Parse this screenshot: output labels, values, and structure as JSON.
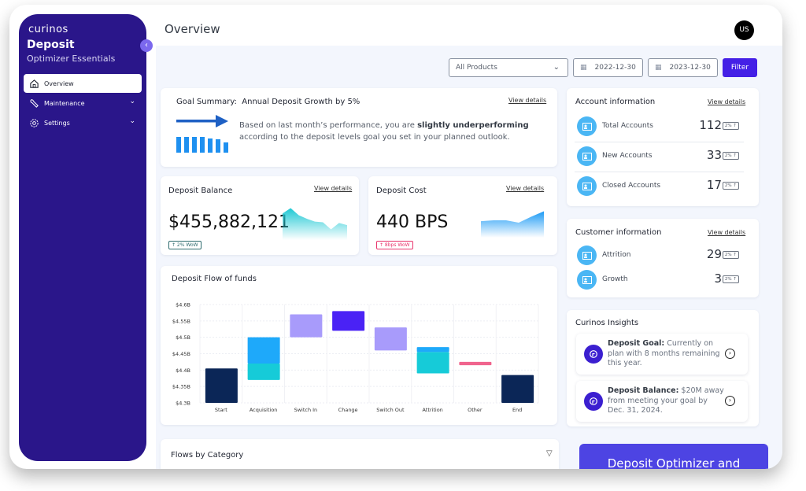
{
  "sidebar": {
    "logo": "curinos",
    "app_name": "Deposit",
    "app_subtitle": "Optimizer Essentials",
    "collapse_icon": "chevron-left-icon",
    "items": [
      {
        "label": "Overview",
        "icon": "home-icon",
        "active": true
      },
      {
        "label": "Maintenance",
        "icon": "wrench-icon",
        "expandable": true
      },
      {
        "label": "Settings",
        "icon": "gear-icon",
        "expandable": true
      }
    ]
  },
  "header": {
    "title": "Overview",
    "avatar_initials": "US"
  },
  "filters": {
    "product_select": "All Products",
    "start_date": "2022-12-30",
    "end_date": "2023-12-30",
    "filter_label": "Filter"
  },
  "goal_summary": {
    "label": "Goal Summary:",
    "goal": "Annual Deposit Growth by 5%",
    "view_details": "View details",
    "text_before": "Based on last month’s performance, you are ",
    "text_bold": "slightly underperforming",
    "text_after": " according to the deposit levels goal you set in your planned outlook."
  },
  "deposit_balance": {
    "title": "Deposit Balance",
    "view_details": "View details",
    "value": "$455,882,121",
    "badge": "↑ 2% WoW",
    "badge_color": "#2e6b6e",
    "sparkline": [
      0.75,
      0.9,
      0.7,
      0.6,
      0.52,
      0.5,
      0.3,
      0.48,
      0.42
    ],
    "sparkline_color": "#1ec8d4"
  },
  "deposit_cost": {
    "title": "Deposit Cost",
    "view_details": "View details",
    "value": "440 BPS",
    "badge": "↑ 8bps WoW",
    "badge_color": "#e8336b",
    "sparkline": [
      0.55,
      0.58,
      0.58,
      0.5,
      0.7,
      0.88
    ],
    "sparkline_color": "#1e9bf5"
  },
  "account_info": {
    "title": "Account information",
    "view_details": "View details",
    "rows": [
      {
        "label": "Total Accounts",
        "value": "112",
        "badge": "2% ↑"
      },
      {
        "label": "New Accounts",
        "value": "33",
        "badge": "2% ↑"
      },
      {
        "label": "Closed Accounts",
        "value": "17",
        "badge": "2% ↑"
      }
    ]
  },
  "customer_info": {
    "title": "Customer information",
    "view_details": "View details",
    "rows": [
      {
        "label": "Attrition",
        "value": "29",
        "badge": "2% ↑"
      },
      {
        "label": "Growth",
        "value": "3",
        "badge": "2% ↑"
      }
    ]
  },
  "insights": {
    "title": "Curinos Insights",
    "items": [
      {
        "bold": "Deposit Goal:",
        "text": " Currently on plan with 8 months remaining this year."
      },
      {
        "bold": "Deposit Balance:",
        "text": " $20M away from meeting your goal by Dec. 31, 2024."
      }
    ]
  },
  "flows_by_category": {
    "title": "Flows by Category"
  },
  "promo": {
    "label": "Deposit Optimizer and"
  },
  "chart_data": {
    "type": "waterfall",
    "title": "Deposit Flow of funds",
    "xlabel": "",
    "ylabel": "",
    "ylim": [
      4.3,
      4.6
    ],
    "yticks": [
      "$4.3B",
      "$4.35B",
      "$4.4B",
      "$4.45B",
      "$4.5B",
      "$4.55B",
      "$4.6B"
    ],
    "ytick_values": [
      4.3,
      4.35,
      4.4,
      4.45,
      4.5,
      4.55,
      4.6
    ],
    "grid": true,
    "categories": [
      "Start",
      "Acquisition",
      "Switch In",
      "Change",
      "Switch Out",
      "Attrition",
      "Other",
      "End"
    ],
    "bars": [
      {
        "category": "Start",
        "segments": [
          {
            "from": 4.3,
            "to": 4.405,
            "color": "#0b2657"
          }
        ]
      },
      {
        "category": "Acquisition",
        "segments": [
          {
            "from": 4.37,
            "to": 4.42,
            "color": "#16cbd8"
          },
          {
            "from": 4.42,
            "to": 4.5,
            "color": "#1ea9fa"
          }
        ]
      },
      {
        "category": "Switch In",
        "segments": [
          {
            "from": 4.5,
            "to": 4.57,
            "color": "#a89bfb"
          }
        ]
      },
      {
        "category": "Change",
        "segments": [
          {
            "from": 4.52,
            "to": 4.58,
            "color": "#4a22f5"
          }
        ]
      },
      {
        "category": "Switch Out",
        "segments": [
          {
            "from": 4.46,
            "to": 4.53,
            "color": "#a89bfb"
          }
        ]
      },
      {
        "category": "Attrition",
        "segments": [
          {
            "from": 4.39,
            "to": 4.455,
            "color": "#16cbd8"
          },
          {
            "from": 4.455,
            "to": 4.47,
            "color": "#1ea9fa"
          }
        ]
      },
      {
        "category": "Other",
        "segments": [
          {
            "from": 4.415,
            "to": 4.425,
            "color": "#f0648d"
          }
        ]
      },
      {
        "category": "End",
        "segments": [
          {
            "from": 4.3,
            "to": 4.385,
            "color": "#0b2657"
          }
        ]
      }
    ]
  }
}
